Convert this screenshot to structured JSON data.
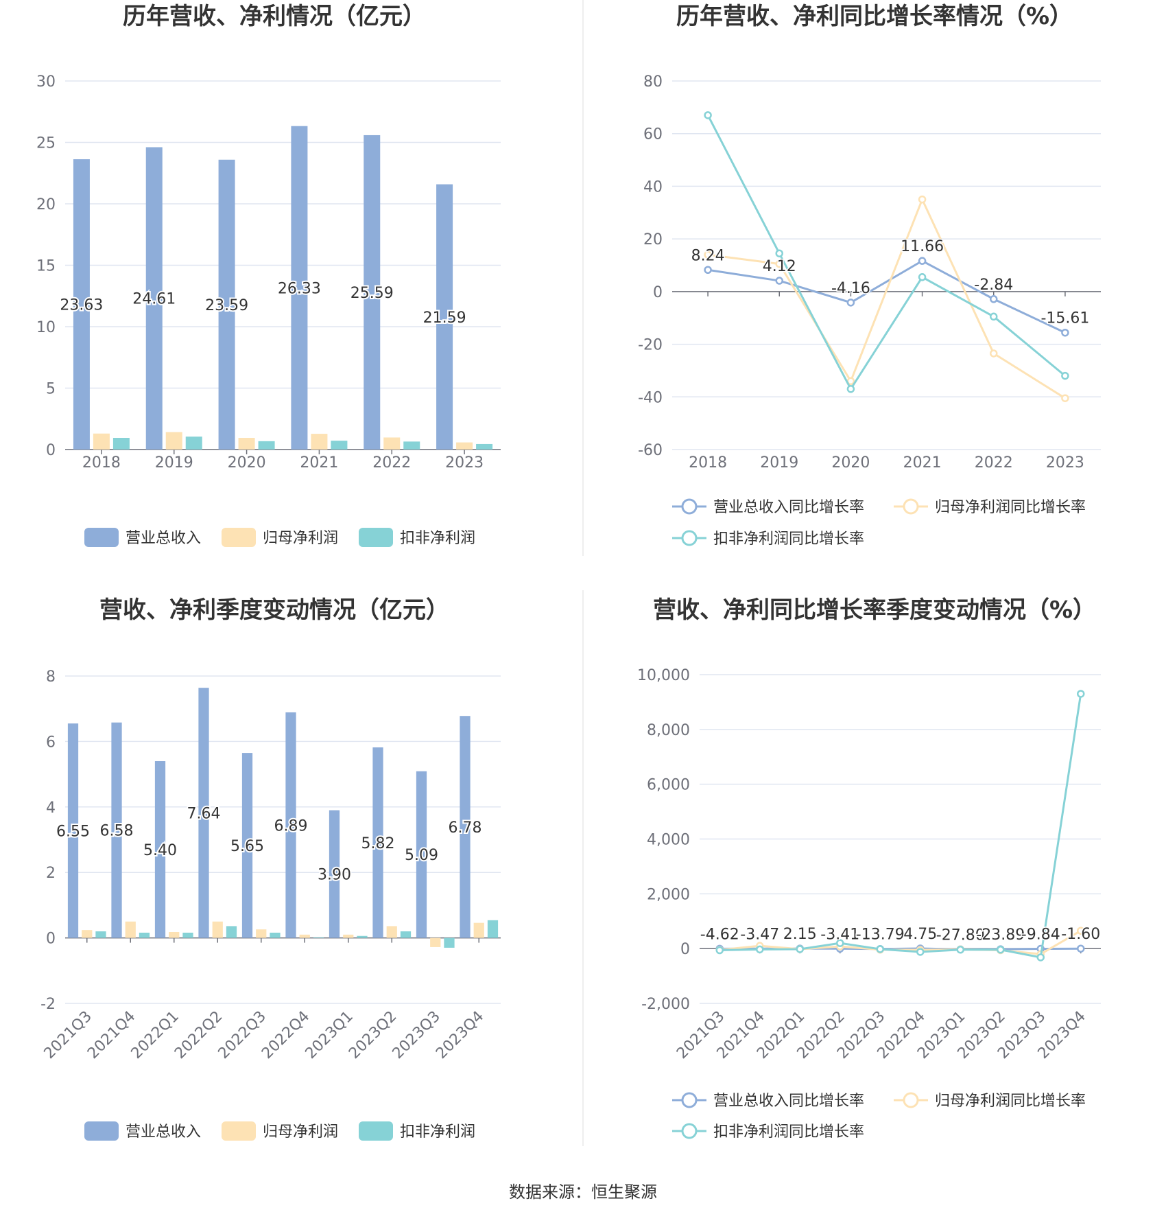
{
  "source": "数据来源：恒生聚源",
  "colors": {
    "revenue": "#8eadd9",
    "net_profit": "#fde2b4",
    "deducted_profit": "#86d2d6",
    "grid": "#e0e6f1",
    "axis": "#6e7079"
  },
  "chart_data": [
    {
      "type": "bar",
      "title": "历年营收、净利情况（亿元）",
      "categories": [
        "2018",
        "2019",
        "2020",
        "2021",
        "2022",
        "2023"
      ],
      "ylim": [
        0,
        30
      ],
      "yticks": [
        0,
        5,
        10,
        15,
        20,
        25,
        30
      ],
      "grid": true,
      "legend": "bottom",
      "series": [
        {
          "name": "营业总收入",
          "values": [
            23.63,
            24.61,
            23.59,
            26.33,
            25.59,
            21.59
          ],
          "labels": [
            "23.63",
            "24.61",
            "23.59",
            "26.33",
            "25.59",
            "21.59"
          ]
        },
        {
          "name": "归母净利润",
          "values": [
            1.3,
            1.42,
            0.95,
            1.28,
            0.98,
            0.58
          ]
        },
        {
          "name": "扣非净利润",
          "values": [
            0.95,
            1.05,
            0.68,
            0.72,
            0.65,
            0.45
          ]
        }
      ]
    },
    {
      "type": "line",
      "title": "历年营收、净利同比增长率情况（%）",
      "categories": [
        "2018",
        "2019",
        "2020",
        "2021",
        "2022",
        "2023"
      ],
      "ylim": [
        -60,
        80
      ],
      "yticks": [
        -60,
        -40,
        -20,
        0,
        20,
        40,
        60,
        80
      ],
      "grid": true,
      "legend": "bottom",
      "series": [
        {
          "name": "营业总收入同比增长率",
          "values": [
            8.24,
            4.12,
            -4.16,
            11.66,
            -2.84,
            -15.61
          ],
          "labels": [
            "8.24",
            "4.12",
            "-4.16",
            "11.66",
            "-2.84",
            "-15.61"
          ]
        },
        {
          "name": "归母净利润同比增长率",
          "values": [
            14,
            10.5,
            -34,
            35,
            -23.5,
            -40.5
          ]
        },
        {
          "name": "扣非净利润同比增长率",
          "values": [
            67,
            14.5,
            -37,
            5.5,
            -9.5,
            -32
          ]
        }
      ]
    },
    {
      "type": "bar",
      "title": "营收、净利季度变动情况（亿元）",
      "categories": [
        "2021Q3",
        "2021Q4",
        "2022Q1",
        "2022Q2",
        "2022Q3",
        "2022Q4",
        "2023Q1",
        "2023Q2",
        "2023Q3",
        "2023Q4"
      ],
      "ylim": [
        -2,
        8
      ],
      "yticks": [
        -2,
        0,
        2,
        4,
        6,
        8
      ],
      "grid": true,
      "legend": "bottom",
      "series": [
        {
          "name": "营业总收入",
          "values": [
            6.55,
            6.58,
            5.4,
            7.64,
            5.65,
            6.89,
            3.9,
            5.82,
            5.09,
            6.78
          ],
          "labels": [
            "6.55",
            "6.58",
            "5.40",
            "7.64",
            "5.65",
            "6.89",
            "3.90",
            "5.82",
            "5.09",
            "6.78"
          ]
        },
        {
          "name": "归母净利润",
          "values": [
            0.24,
            0.5,
            0.18,
            0.5,
            0.26,
            0.1,
            0.1,
            0.36,
            -0.28,
            0.46
          ]
        },
        {
          "name": "扣非净利润",
          "values": [
            0.2,
            0.16,
            0.16,
            0.36,
            0.16,
            0.02,
            0.06,
            0.2,
            -0.3,
            0.54
          ]
        }
      ]
    },
    {
      "type": "line",
      "title": "营收、净利同比增长率季度变动情况（%）",
      "categories": [
        "2021Q3",
        "2021Q4",
        "2022Q1",
        "2022Q2",
        "2022Q3",
        "2022Q4",
        "2023Q1",
        "2023Q2",
        "2023Q3",
        "2023Q4"
      ],
      "ylim": [
        -2000,
        10000
      ],
      "yticks": [
        -2000,
        0,
        2000,
        4000,
        6000,
        8000,
        10000
      ],
      "ytick_labels": [
        "-2,000",
        "0",
        "2,000",
        "4,000",
        "6,000",
        "8,000",
        "10,000"
      ],
      "grid": true,
      "legend": "bottom",
      "series": [
        {
          "name": "营业总收入同比增长率",
          "values": [
            -4.62,
            -3.47,
            2.15,
            -3.41,
            -13.79,
            4.75,
            -27.8,
            -23.89,
            -9.84,
            -1.6
          ],
          "labels": [
            "-4.62",
            "-3.47",
            "2.15",
            "-3.41",
            "-13.79",
            "4.75",
            "-27.80",
            "-23.89",
            "-9.84",
            "-1.60"
          ]
        },
        {
          "name": "归母净利润同比增长率",
          "values": [
            -50,
            100,
            -20,
            80,
            -40,
            -50,
            -30,
            -60,
            -200,
            650
          ]
        },
        {
          "name": "扣非净利润同比增长率",
          "values": [
            -60,
            -30,
            -20,
            200,
            -20,
            -120,
            -40,
            -40,
            -320,
            9300
          ]
        }
      ]
    }
  ]
}
